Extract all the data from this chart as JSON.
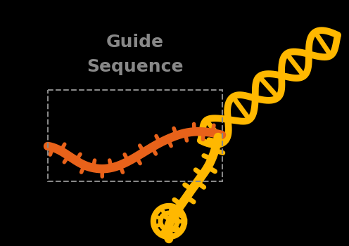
{
  "background_color": "#000000",
  "dna_color": "#FFB800",
  "rna_color": "#E8621A",
  "box_color": "#888888",
  "title_color": "#888888",
  "title_fontsize": 18,
  "figsize": [
    4.96,
    3.5
  ],
  "dpi": 100
}
